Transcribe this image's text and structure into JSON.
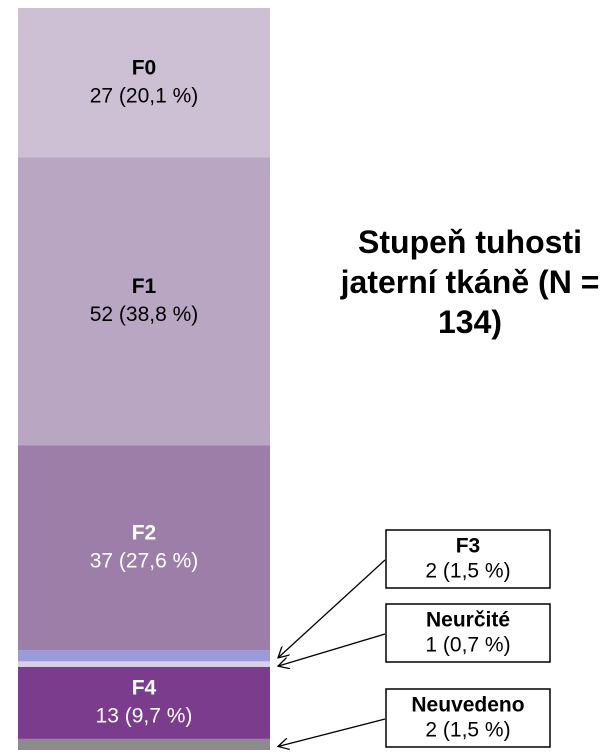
{
  "chart_data": {
    "type": "stacked_bar",
    "title": "Stupeň tuhosti jaterní tkáně (N = 134)",
    "categories": [
      "F0",
      "F1",
      "F2",
      "F3",
      "Neurčité",
      "F4",
      "Neuvedeno"
    ],
    "values": [
      27,
      52,
      37,
      2,
      1,
      13,
      2
    ],
    "value_labels": [
      "27 (20,1 %)",
      "52 (38,8 %)",
      "37 (27,6 %)",
      "2 (1,5 %)",
      "1 (0,7 %)",
      "13 (9,7 %)",
      "2 (1,5 %)"
    ],
    "colors": [
      "#cec0d4",
      "#b9a6c3",
      "#9c7ea8",
      "#9b9bd9",
      "#d9d0e2",
      "#7b3c8d",
      "#8c8c8c"
    ],
    "label_colors": [
      "#000000",
      "#000000",
      "#ffffff",
      "#000000",
      "#000000",
      "#ffffff",
      "#000000"
    ]
  }
}
